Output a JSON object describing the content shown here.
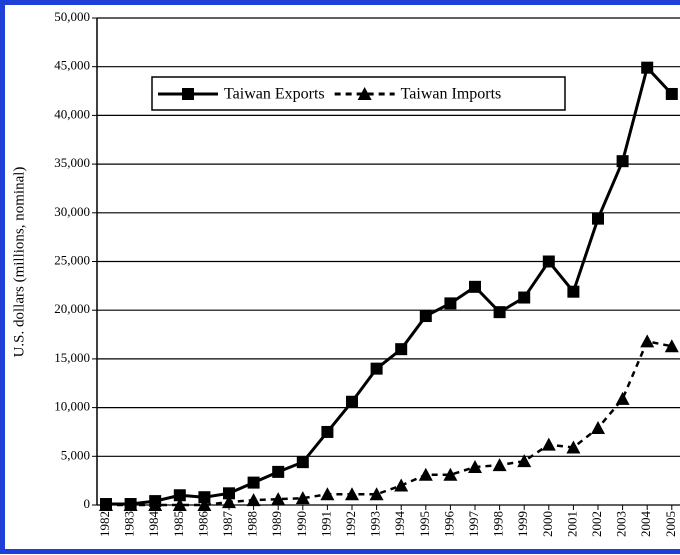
{
  "chart_data": {
    "type": "line",
    "y_label": "U.S. dollars (millions, nominal)",
    "categories": [
      "1982",
      "1983",
      "1984",
      "1985",
      "1986",
      "1987",
      "1988",
      "1989",
      "1990",
      "1991",
      "1992",
      "1993",
      "1994",
      "1995",
      "1996",
      "1997",
      "1998",
      "1999",
      "2000",
      "2001",
      "2002",
      "2003",
      "2004",
      "2005"
    ],
    "series": [
      {
        "name": "Taiwan Exports",
        "color": "#000000",
        "marker": "square",
        "dash": false,
        "values": [
          100,
          100,
          400,
          1000,
          800,
          1200,
          2300,
          3400,
          4400,
          7500,
          10600,
          14000,
          16000,
          19400,
          20700,
          22400,
          19800,
          21300,
          25000,
          21900,
          29400,
          35300,
          44900,
          42200
        ]
      },
      {
        "name": "Taiwan Imports",
        "color": "#000000",
        "marker": "triangle",
        "dash": true,
        "values": [
          0,
          0,
          0,
          0,
          0,
          300,
          500,
          600,
          700,
          1100,
          1100,
          1100,
          2000,
          3100,
          3100,
          3900,
          4100,
          4500,
          6200,
          5900,
          7900,
          10900,
          16800,
          16300
        ]
      }
    ],
    "ylim": [
      0,
      50000
    ],
    "yticks": [
      0,
      {
        "value": 5000,
        "label": "5,000"
      },
      {
        "value": 10000,
        "label": "10,000"
      },
      {
        "value": 15000,
        "label": "15,000"
      },
      {
        "value": 20000,
        "label": "20,000"
      },
      {
        "value": 25000,
        "label": "25,000"
      },
      {
        "value": 30000,
        "label": "30,000"
      },
      {
        "value": 35000,
        "label": "35,000"
      },
      {
        "value": 40000,
        "label": "40,000"
      },
      {
        "value": 45000,
        "label": "45,000"
      },
      {
        "value": 50000,
        "label": "50,000"
      }
    ],
    "grid": true,
    "legend": "top"
  }
}
